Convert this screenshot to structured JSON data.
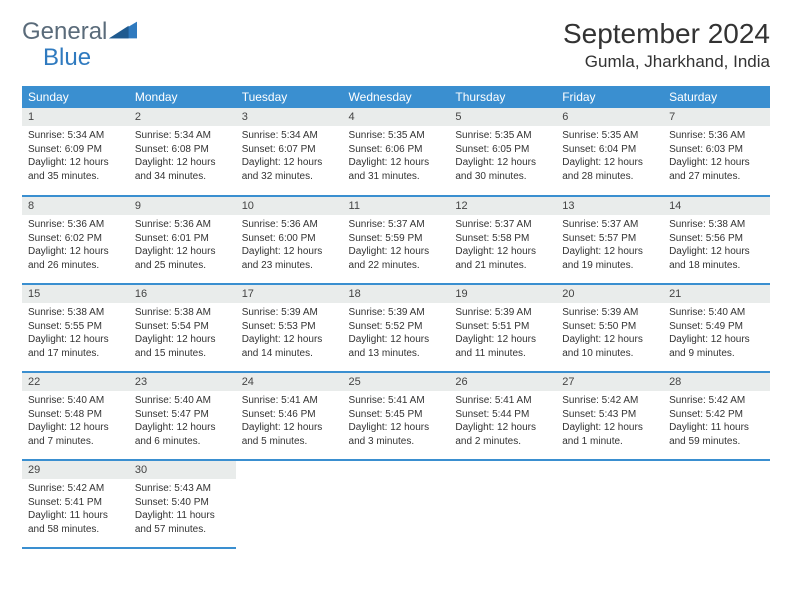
{
  "brand": {
    "part1": "General",
    "part2": "Blue"
  },
  "title": "September 2024",
  "location": "Gumla, Jharkhand, India",
  "colors": {
    "header_bg": "#3a8fd0",
    "header_text": "#ffffff",
    "daynum_bg": "#e9eceb",
    "row_divider": "#3a8fd0",
    "logo_gray": "#5a6b7a",
    "logo_blue": "#2f7abf",
    "text": "#333333",
    "page_bg": "#ffffff"
  },
  "layout": {
    "type": "table",
    "columns": 7,
    "rows": 5,
    "daynum_fontsize": 11,
    "dayinfo_fontsize": 10,
    "header_fontsize": 12,
    "title_fontsize": 28,
    "location_fontsize": 17
  },
  "weekdays": [
    "Sunday",
    "Monday",
    "Tuesday",
    "Wednesday",
    "Thursday",
    "Friday",
    "Saturday"
  ],
  "days": [
    {
      "n": "1",
      "sunrise": "Sunrise: 5:34 AM",
      "sunset": "Sunset: 6:09 PM",
      "dl1": "Daylight: 12 hours",
      "dl2": "and 35 minutes."
    },
    {
      "n": "2",
      "sunrise": "Sunrise: 5:34 AM",
      "sunset": "Sunset: 6:08 PM",
      "dl1": "Daylight: 12 hours",
      "dl2": "and 34 minutes."
    },
    {
      "n": "3",
      "sunrise": "Sunrise: 5:34 AM",
      "sunset": "Sunset: 6:07 PM",
      "dl1": "Daylight: 12 hours",
      "dl2": "and 32 minutes."
    },
    {
      "n": "4",
      "sunrise": "Sunrise: 5:35 AM",
      "sunset": "Sunset: 6:06 PM",
      "dl1": "Daylight: 12 hours",
      "dl2": "and 31 minutes."
    },
    {
      "n": "5",
      "sunrise": "Sunrise: 5:35 AM",
      "sunset": "Sunset: 6:05 PM",
      "dl1": "Daylight: 12 hours",
      "dl2": "and 30 minutes."
    },
    {
      "n": "6",
      "sunrise": "Sunrise: 5:35 AM",
      "sunset": "Sunset: 6:04 PM",
      "dl1": "Daylight: 12 hours",
      "dl2": "and 28 minutes."
    },
    {
      "n": "7",
      "sunrise": "Sunrise: 5:36 AM",
      "sunset": "Sunset: 6:03 PM",
      "dl1": "Daylight: 12 hours",
      "dl2": "and 27 minutes."
    },
    {
      "n": "8",
      "sunrise": "Sunrise: 5:36 AM",
      "sunset": "Sunset: 6:02 PM",
      "dl1": "Daylight: 12 hours",
      "dl2": "and 26 minutes."
    },
    {
      "n": "9",
      "sunrise": "Sunrise: 5:36 AM",
      "sunset": "Sunset: 6:01 PM",
      "dl1": "Daylight: 12 hours",
      "dl2": "and 25 minutes."
    },
    {
      "n": "10",
      "sunrise": "Sunrise: 5:36 AM",
      "sunset": "Sunset: 6:00 PM",
      "dl1": "Daylight: 12 hours",
      "dl2": "and 23 minutes."
    },
    {
      "n": "11",
      "sunrise": "Sunrise: 5:37 AM",
      "sunset": "Sunset: 5:59 PM",
      "dl1": "Daylight: 12 hours",
      "dl2": "and 22 minutes."
    },
    {
      "n": "12",
      "sunrise": "Sunrise: 5:37 AM",
      "sunset": "Sunset: 5:58 PM",
      "dl1": "Daylight: 12 hours",
      "dl2": "and 21 minutes."
    },
    {
      "n": "13",
      "sunrise": "Sunrise: 5:37 AM",
      "sunset": "Sunset: 5:57 PM",
      "dl1": "Daylight: 12 hours",
      "dl2": "and 19 minutes."
    },
    {
      "n": "14",
      "sunrise": "Sunrise: 5:38 AM",
      "sunset": "Sunset: 5:56 PM",
      "dl1": "Daylight: 12 hours",
      "dl2": "and 18 minutes."
    },
    {
      "n": "15",
      "sunrise": "Sunrise: 5:38 AM",
      "sunset": "Sunset: 5:55 PM",
      "dl1": "Daylight: 12 hours",
      "dl2": "and 17 minutes."
    },
    {
      "n": "16",
      "sunrise": "Sunrise: 5:38 AM",
      "sunset": "Sunset: 5:54 PM",
      "dl1": "Daylight: 12 hours",
      "dl2": "and 15 minutes."
    },
    {
      "n": "17",
      "sunrise": "Sunrise: 5:39 AM",
      "sunset": "Sunset: 5:53 PM",
      "dl1": "Daylight: 12 hours",
      "dl2": "and 14 minutes."
    },
    {
      "n": "18",
      "sunrise": "Sunrise: 5:39 AM",
      "sunset": "Sunset: 5:52 PM",
      "dl1": "Daylight: 12 hours",
      "dl2": "and 13 minutes."
    },
    {
      "n": "19",
      "sunrise": "Sunrise: 5:39 AM",
      "sunset": "Sunset: 5:51 PM",
      "dl1": "Daylight: 12 hours",
      "dl2": "and 11 minutes."
    },
    {
      "n": "20",
      "sunrise": "Sunrise: 5:39 AM",
      "sunset": "Sunset: 5:50 PM",
      "dl1": "Daylight: 12 hours",
      "dl2": "and 10 minutes."
    },
    {
      "n": "21",
      "sunrise": "Sunrise: 5:40 AM",
      "sunset": "Sunset: 5:49 PM",
      "dl1": "Daylight: 12 hours",
      "dl2": "and 9 minutes."
    },
    {
      "n": "22",
      "sunrise": "Sunrise: 5:40 AM",
      "sunset": "Sunset: 5:48 PM",
      "dl1": "Daylight: 12 hours",
      "dl2": "and 7 minutes."
    },
    {
      "n": "23",
      "sunrise": "Sunrise: 5:40 AM",
      "sunset": "Sunset: 5:47 PM",
      "dl1": "Daylight: 12 hours",
      "dl2": "and 6 minutes."
    },
    {
      "n": "24",
      "sunrise": "Sunrise: 5:41 AM",
      "sunset": "Sunset: 5:46 PM",
      "dl1": "Daylight: 12 hours",
      "dl2": "and 5 minutes."
    },
    {
      "n": "25",
      "sunrise": "Sunrise: 5:41 AM",
      "sunset": "Sunset: 5:45 PM",
      "dl1": "Daylight: 12 hours",
      "dl2": "and 3 minutes."
    },
    {
      "n": "26",
      "sunrise": "Sunrise: 5:41 AM",
      "sunset": "Sunset: 5:44 PM",
      "dl1": "Daylight: 12 hours",
      "dl2": "and 2 minutes."
    },
    {
      "n": "27",
      "sunrise": "Sunrise: 5:42 AM",
      "sunset": "Sunset: 5:43 PM",
      "dl1": "Daylight: 12 hours",
      "dl2": "and 1 minute."
    },
    {
      "n": "28",
      "sunrise": "Sunrise: 5:42 AM",
      "sunset": "Sunset: 5:42 PM",
      "dl1": "Daylight: 11 hours",
      "dl2": "and 59 minutes."
    },
    {
      "n": "29",
      "sunrise": "Sunrise: 5:42 AM",
      "sunset": "Sunset: 5:41 PM",
      "dl1": "Daylight: 11 hours",
      "dl2": "and 58 minutes."
    },
    {
      "n": "30",
      "sunrise": "Sunrise: 5:43 AM",
      "sunset": "Sunset: 5:40 PM",
      "dl1": "Daylight: 11 hours",
      "dl2": "and 57 minutes."
    }
  ]
}
